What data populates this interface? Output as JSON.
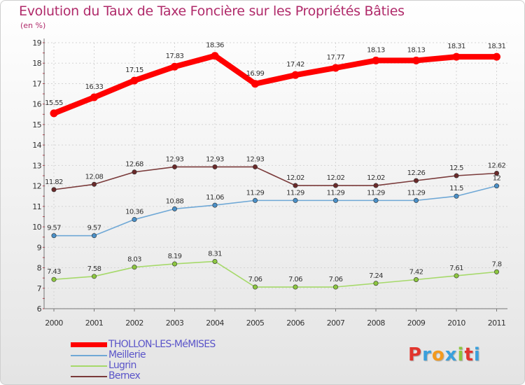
{
  "title": "Evolution du Taux de Taxe Foncière sur les Propriétés Bâties",
  "unit": "(en %)",
  "logo": {
    "text": "Proxiti",
    "letters": [
      "P",
      "r",
      "o",
      "x",
      "i",
      "t",
      "i"
    ],
    "colors": [
      "#e2352d",
      "#3aa0dc",
      "#f39a1e",
      "#3aa0dc",
      "#8dc63f",
      "#e2352d",
      "#3aa0dc"
    ]
  },
  "chart_data": {
    "type": "line",
    "title": "Evolution du Taux de Taxe Foncière sur les Propriétés Bâties",
    "ylabel": "(en %)",
    "xlabel": "",
    "categories": [
      "2000",
      "2001",
      "2002",
      "2003",
      "2004",
      "2005",
      "2006",
      "2007",
      "2008",
      "2009",
      "2010",
      "2011"
    ],
    "ylim": [
      6,
      19
    ],
    "yticks": [
      "6",
      "7",
      "8",
      "9",
      "10",
      "11",
      "12",
      "13",
      "14",
      "15",
      "16",
      "17",
      "18",
      "19"
    ],
    "grid": true,
    "legend_position": "bottom-left",
    "series": [
      {
        "name": "THOLLON-LES-MéMISES",
        "color": "#ff0000",
        "marker": "#ff0000",
        "bold": true,
        "values": [
          15.55,
          16.33,
          17.15,
          17.83,
          18.36,
          16.99,
          17.42,
          17.77,
          18.13,
          18.13,
          18.31,
          18.31
        ],
        "labels": [
          "15.55",
          "16.33",
          "17.15",
          "17.83",
          "18.36",
          "16.99",
          "17.42",
          "17.77",
          "18.13",
          "18.13",
          "18.31",
          "18.31"
        ]
      },
      {
        "name": "Meillerie",
        "color": "#6fa8d6",
        "marker": "#4a90c8",
        "bold": false,
        "values": [
          9.57,
          9.57,
          10.36,
          10.88,
          11.06,
          11.29,
          11.29,
          11.29,
          11.29,
          11.29,
          11.5,
          12
        ],
        "labels": [
          "9.57",
          "9.57",
          "10.36",
          "10.88",
          "11.06",
          "11.29",
          "11.29",
          "11.29",
          "11.29",
          "11.29",
          "11.5",
          "12"
        ]
      },
      {
        "name": "Lugrin",
        "color": "#a6d96a",
        "marker": "#8cc63f",
        "bold": false,
        "values": [
          7.43,
          7.58,
          8.03,
          8.19,
          8.31,
          7.06,
          7.06,
          7.06,
          7.24,
          7.42,
          7.61,
          7.8
        ],
        "labels": [
          "7.43",
          "7.58",
          "8.03",
          "8.19",
          "8.31",
          "7.06",
          "7.06",
          "7.06",
          "7.24",
          "7.42",
          "7.61",
          "7.8"
        ]
      },
      {
        "name": "Bernex",
        "color": "#7a3a3a",
        "marker": "#6a2a2a",
        "bold": false,
        "values": [
          11.82,
          12.08,
          12.68,
          12.93,
          12.93,
          12.93,
          12.02,
          12.02,
          12.02,
          12.26,
          12.5,
          12.62
        ],
        "labels": [
          "11.82",
          "12.08",
          "12.68",
          "12.93",
          "12.93",
          "12.93",
          "12.02",
          "12.02",
          "12.02",
          "12.26",
          "12.5",
          "12.62"
        ]
      }
    ]
  }
}
